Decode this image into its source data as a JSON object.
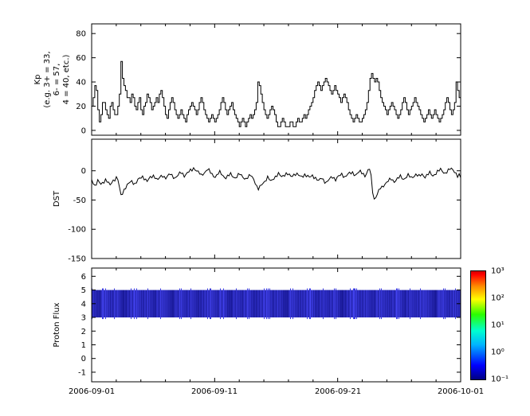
{
  "figure": {
    "background": "#ffffff",
    "line_color": "#000000",
    "x_axis": {
      "tick_labels": [
        "2006-09-01",
        "2006-09-11",
        "2006-09-21",
        "2006-10-01"
      ],
      "range_days": 30
    }
  },
  "chart_data": [
    {
      "type": "line",
      "style": "step",
      "ylabel": "Kp (e.g. 3+ = 33, 6- = 57, 4 = 40, etc.)",
      "ylabel_lines": [
        "Kp",
        "(e.g. 3+ = 33,",
        "6- = 57,",
        "4 = 40, etc.)"
      ],
      "ylim": [
        -4,
        88
      ],
      "yticks": [
        0,
        20,
        40,
        60,
        80
      ],
      "x_start": "2006-09-01",
      "x_end": "2006-10-01",
      "sample_interval_hours": 3,
      "values": [
        20,
        27,
        37,
        33,
        17,
        7,
        13,
        23,
        23,
        17,
        13,
        10,
        20,
        23,
        17,
        13,
        13,
        20,
        30,
        57,
        43,
        37,
        33,
        27,
        27,
        23,
        30,
        27,
        20,
        17,
        23,
        27,
        17,
        13,
        20,
        23,
        30,
        27,
        23,
        17,
        20,
        23,
        27,
        23,
        30,
        33,
        27,
        20,
        13,
        10,
        17,
        23,
        27,
        23,
        17,
        13,
        10,
        13,
        17,
        13,
        10,
        7,
        13,
        17,
        20,
        23,
        20,
        17,
        13,
        17,
        23,
        27,
        23,
        17,
        13,
        10,
        7,
        10,
        13,
        10,
        7,
        10,
        13,
        17,
        23,
        27,
        23,
        17,
        13,
        17,
        20,
        23,
        17,
        13,
        10,
        7,
        3,
        7,
        10,
        7,
        3,
        7,
        10,
        13,
        10,
        13,
        17,
        23,
        40,
        37,
        30,
        23,
        17,
        13,
        10,
        13,
        17,
        20,
        17,
        13,
        7,
        3,
        3,
        7,
        10,
        7,
        3,
        3,
        3,
        7,
        7,
        3,
        3,
        7,
        10,
        7,
        7,
        10,
        13,
        10,
        13,
        17,
        20,
        23,
        27,
        33,
        37,
        40,
        37,
        33,
        37,
        40,
        43,
        40,
        37,
        33,
        30,
        33,
        37,
        33,
        30,
        27,
        23,
        27,
        30,
        27,
        23,
        17,
        13,
        10,
        7,
        10,
        13,
        10,
        7,
        7,
        10,
        13,
        17,
        23,
        33,
        43,
        47,
        43,
        40,
        43,
        40,
        33,
        27,
        23,
        20,
        17,
        13,
        17,
        20,
        23,
        20,
        17,
        13,
        10,
        13,
        17,
        23,
        27,
        23,
        17,
        13,
        17,
        20,
        23,
        27,
        23,
        20,
        17,
        13,
        10,
        7,
        10,
        13,
        17,
        13,
        10,
        13,
        17,
        13,
        10,
        7,
        10,
        13,
        17,
        23,
        27,
        23,
        17,
        13,
        17,
        23,
        40,
        33,
        27
      ]
    },
    {
      "type": "line",
      "ylabel": "DST",
      "ylim": [
        -150,
        54
      ],
      "yticks": [
        0,
        -50,
        -100,
        -150
      ],
      "x_start": "2006-09-01",
      "x_end": "2006-10-01",
      "sample_interval_hours": 3,
      "values": [
        -15,
        -20,
        -25,
        -22,
        -18,
        -20,
        -24,
        -20,
        -18,
        -15,
        -18,
        -22,
        -25,
        -20,
        -16,
        -14,
        -12,
        -15,
        -30,
        -42,
        -38,
        -32,
        -28,
        -25,
        -22,
        -20,
        -18,
        -20,
        -22,
        -19,
        -16,
        -14,
        -12,
        -10,
        -12,
        -15,
        -18,
        -15,
        -12,
        -10,
        -8,
        -10,
        -14,
        -16,
        -12,
        -10,
        -8,
        -10,
        -12,
        -10,
        -8,
        -6,
        -8,
        -10,
        -12,
        -10,
        -8,
        -5,
        -3,
        -5,
        -8,
        -6,
        -4,
        -2,
        0,
        2,
        5,
        3,
        0,
        -3,
        -5,
        -8,
        -5,
        -3,
        0,
        2,
        0,
        -3,
        -6,
        -8,
        -10,
        -8,
        -5,
        -3,
        -5,
        -8,
        -10,
        -12,
        -10,
        -8,
        -6,
        -8,
        -10,
        -12,
        -10,
        -8,
        -6,
        -8,
        -10,
        -12,
        -14,
        -12,
        -10,
        -8,
        -10,
        -14,
        -20,
        -28,
        -32,
        -28,
        -24,
        -20,
        -18,
        -15,
        -12,
        -15,
        -18,
        -15,
        -12,
        -10,
        -8,
        -6,
        -8,
        -10,
        -8,
        -6,
        -5,
        -6,
        -8,
        -10,
        -8,
        -6,
        -5,
        -6,
        -8,
        -10,
        -10,
        -8,
        -6,
        -8,
        -10,
        -12,
        -10,
        -8,
        -10,
        -12,
        -15,
        -18,
        -15,
        -12,
        -15,
        -18,
        -20,
        -18,
        -15,
        -12,
        -10,
        -12,
        -15,
        -12,
        -10,
        -8,
        -6,
        -8,
        -10,
        -8,
        -6,
        -5,
        -4,
        -3,
        -5,
        -7,
        -5,
        -3,
        -2,
        -3,
        -5,
        -8,
        -5,
        0,
        3,
        -10,
        -35,
        -48,
        -45,
        -40,
        -35,
        -30,
        -28,
        -25,
        -22,
        -20,
        -18,
        -16,
        -14,
        -16,
        -18,
        -16,
        -14,
        -12,
        -10,
        -12,
        -14,
        -12,
        -10,
        -8,
        -10,
        -12,
        -10,
        -8,
        -6,
        -8,
        -10,
        -8,
        -6,
        -8,
        -10,
        -8,
        -6,
        -4,
        -6,
        -8,
        -6,
        -4,
        -2,
        0,
        2,
        0,
        -2,
        -4,
        -2,
        0,
        2,
        4,
        2,
        0,
        -5,
        -10,
        -8,
        -12
      ]
    },
    {
      "type": "heatmap",
      "ylabel": "Proton Flux",
      "ylim": [
        -1.7,
        6.6
      ],
      "yticks": [
        -1,
        0,
        1,
        2,
        3,
        4,
        5,
        6
      ],
      "x_start": "2006-09-01",
      "x_end": "2006-10-01",
      "band_y_range": [
        3,
        5
      ],
      "band_description": "continuous low-level proton flux band (dark blue, ~0.1-1 on log color scale)",
      "band_intensity": [
        0.7,
        0.4,
        0.9,
        0.5,
        0.8,
        0.3,
        0.6,
        0.9,
        0.5,
        0.7,
        0.4,
        0.8,
        0.6,
        0.3,
        0.9,
        0.5,
        0.7,
        0.4,
        0.6,
        0.8,
        0.5,
        0.9,
        0.3,
        0.7,
        0.5,
        0.8,
        0.4,
        0.6,
        0.9,
        0.5,
        0.7,
        0.3,
        0.8,
        0.5,
        0.6,
        0.9,
        0.4,
        0.7,
        0.5,
        0.8,
        0.3,
        0.6,
        0.9,
        0.5,
        0.7,
        0.4,
        0.8,
        0.6,
        0.5,
        0.9,
        0.4,
        0.7,
        0.5,
        0.8,
        0.6,
        0.3,
        0.9,
        0.5,
        0.7,
        0.6
      ],
      "colorbar": {
        "scale": "log",
        "min": "10⁻¹",
        "max": "10³",
        "tick_labels": [
          "10³",
          "10²",
          "10¹",
          "10⁰",
          "10⁻¹"
        ],
        "gradient_stops": [
          [
            "#000082",
            0
          ],
          [
            "#0000ff",
            13
          ],
          [
            "#00b4ff",
            32
          ],
          [
            "#00ffd0",
            45
          ],
          [
            "#2aff00",
            60
          ],
          [
            "#ffff00",
            74
          ],
          [
            "#ff8c00",
            86
          ],
          [
            "#ff0000",
            97
          ],
          [
            "#d00000",
            100
          ]
        ]
      }
    }
  ]
}
